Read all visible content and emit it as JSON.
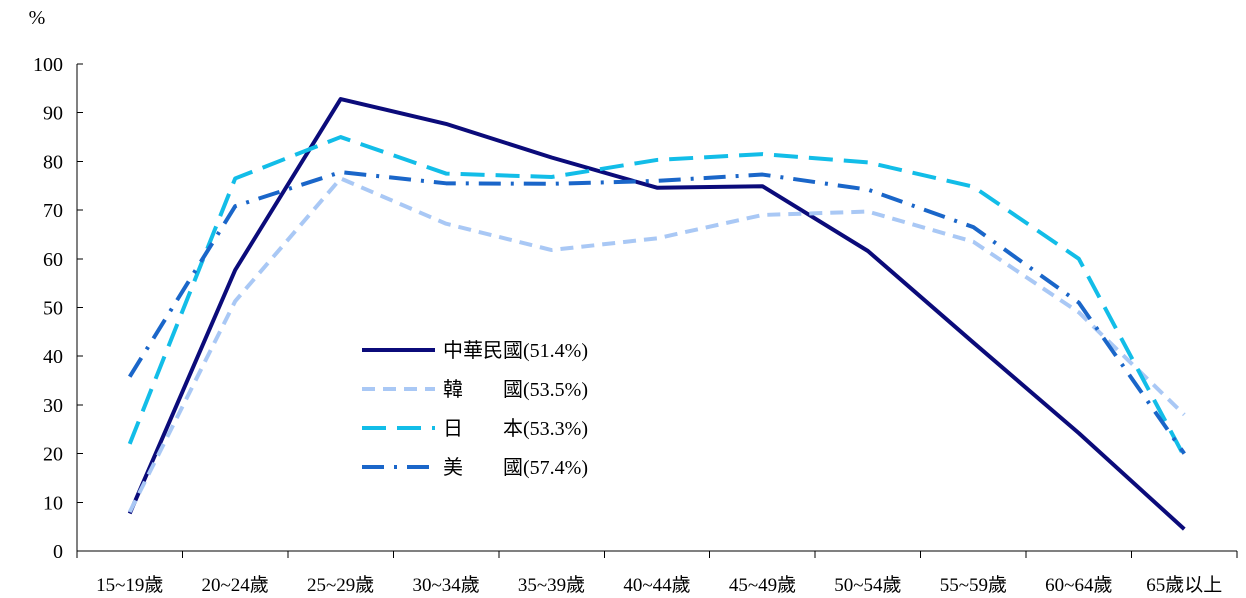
{
  "chart_data": {
    "type": "line",
    "y_unit": "%",
    "ylim": [
      0,
      100
    ],
    "y_ticks": [
      0,
      10,
      20,
      30,
      40,
      50,
      60,
      70,
      80,
      90,
      100
    ],
    "grid": false,
    "legend_position": "center-left",
    "categories": [
      "15~19歲",
      "20~24歲",
      "25~29歲",
      "30~34歲",
      "35~39歲",
      "40~44歲",
      "45~49歲",
      "50~54歲",
      "55~59歲",
      "60~64歲",
      "65歲以上"
    ],
    "series": [
      {
        "name": "中華民國(51.4%)",
        "color": "#0b0b7a",
        "dash": "solid",
        "values": [
          7.7,
          57.7,
          92.8,
          87.7,
          80.8,
          74.6,
          74.9,
          61.6,
          42.8,
          24.2,
          4.5
        ]
      },
      {
        "name": "韓　　國(53.5%)",
        "color": "#a9c8f5",
        "dash": "short",
        "values": [
          8.0,
          51.3,
          76.5,
          67.2,
          61.8,
          64.2,
          69.0,
          69.7,
          63.5,
          49.0,
          28.0
        ]
      },
      {
        "name": "日　　本(53.3%)",
        "color": "#12bde8",
        "dash": "long",
        "values": [
          22.0,
          76.5,
          85.0,
          77.5,
          76.8,
          80.3,
          81.5,
          79.8,
          74.8,
          60.0,
          19.4
        ]
      },
      {
        "name": "美　　國(57.4%)",
        "color": "#1a66c9",
        "dash": "dashdot",
        "values": [
          35.8,
          70.8,
          77.8,
          75.5,
          75.4,
          76.0,
          77.3,
          74.2,
          66.5,
          51.0,
          20.0
        ]
      }
    ]
  }
}
